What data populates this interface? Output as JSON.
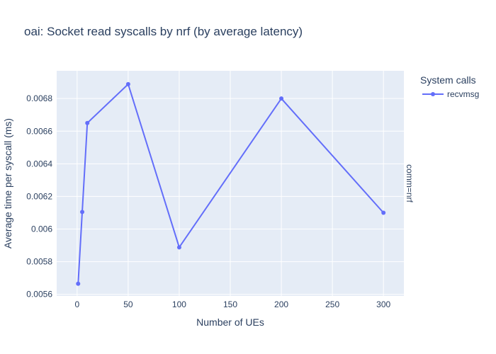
{
  "chart_data": {
    "type": "line",
    "title": "oai: Socket read syscalls by nrf (by average latency)",
    "xlabel": "Number of UEs",
    "ylabel": "Average time per syscall (ms)",
    "facet_label": "comm=nrf",
    "legend_title": "System calls",
    "legend_position": "top-right",
    "grid": true,
    "colors": {
      "plot_bg": "#e5ecf6",
      "grid": "#ffffff",
      "series": "#636efa",
      "text": "#2a3f5f"
    },
    "xlim": [
      -20,
      320
    ],
    "ylim": [
      0.00559,
      0.00697
    ],
    "xticks": [
      0,
      50,
      100,
      150,
      200,
      250,
      300
    ],
    "xtick_labels": [
      "0",
      "50",
      "100",
      "150",
      "200",
      "250",
      "300"
    ],
    "yticks": [
      0.0056,
      0.0058,
      0.006,
      0.0062,
      0.0064,
      0.0066,
      0.0068
    ],
    "ytick_labels": [
      "0.0056",
      "0.0058",
      "0.006",
      "0.0062",
      "0.0064",
      "0.0066",
      "0.0068"
    ],
    "series": [
      {
        "name": "recvmsg",
        "x": [
          1,
          5,
          10,
          50,
          100,
          200,
          300
        ],
        "y": [
          0.005665,
          0.006105,
          0.00665,
          0.006888,
          0.005888,
          0.0068,
          0.0061
        ]
      }
    ]
  }
}
